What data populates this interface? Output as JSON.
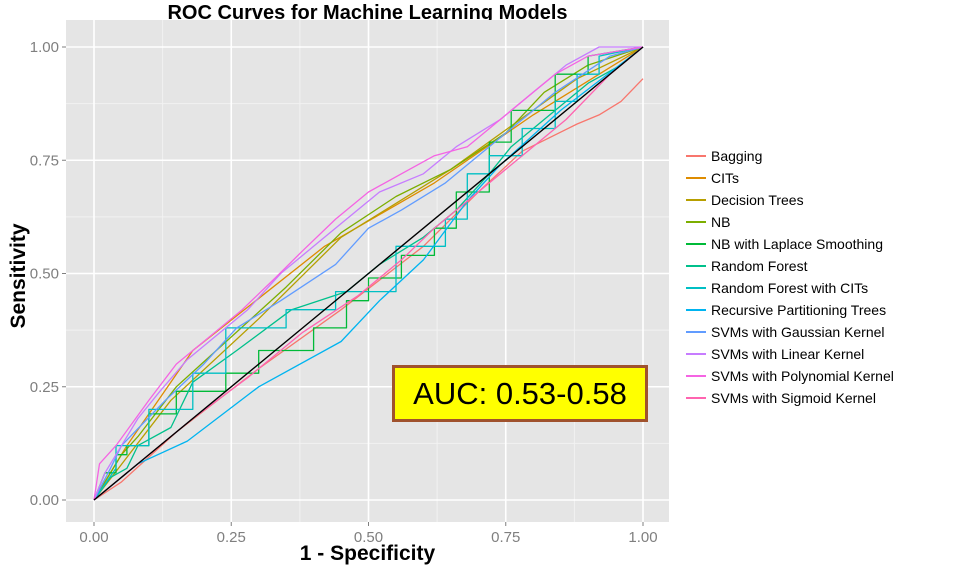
{
  "chart_data": {
    "type": "line",
    "title": "ROC Curves for Machine Learning Models",
    "xlabel": "1 - Specificity",
    "ylabel": "Sensitivity",
    "xlim": [
      0,
      1
    ],
    "ylim": [
      0,
      1
    ],
    "x_ticks": [
      "0.00",
      "0.25",
      "0.50",
      "0.75",
      "1.00"
    ],
    "y_ticks": [
      "0.00",
      "0.25",
      "0.50",
      "0.75",
      "1.00"
    ],
    "grid": true,
    "legend_position": "right",
    "annotation": "AUC: 0.53-0.58",
    "reference_line": {
      "color": "#000000",
      "points": [
        [
          0,
          0
        ],
        [
          1,
          1
        ]
      ]
    },
    "series": [
      {
        "name": "Bagging",
        "color": "#F8766D",
        "points": [
          [
            0,
            0
          ],
          [
            0.05,
            0.04
          ],
          [
            0.15,
            0.15
          ],
          [
            0.3,
            0.29
          ],
          [
            0.45,
            0.42
          ],
          [
            0.6,
            0.56
          ],
          [
            0.7,
            0.68
          ],
          [
            0.78,
            0.77
          ],
          [
            0.88,
            0.83
          ],
          [
            0.92,
            0.85
          ],
          [
            0.96,
            0.88
          ],
          [
            1,
            0.93
          ]
        ]
      },
      {
        "name": "CITs",
        "color": "#DE8C00",
        "points": [
          [
            0,
            0
          ],
          [
            0.06,
            0.12
          ],
          [
            0.18,
            0.33
          ],
          [
            0.42,
            0.56
          ],
          [
            0.62,
            0.7
          ],
          [
            0.8,
            0.85
          ],
          [
            0.92,
            0.94
          ],
          [
            1,
            1
          ]
        ]
      },
      {
        "name": "Decision Trees",
        "color": "#B79F00",
        "points": [
          [
            0,
            0
          ],
          [
            0.14,
            0.22
          ],
          [
            0.3,
            0.4
          ],
          [
            0.45,
            0.58
          ],
          [
            0.65,
            0.73
          ],
          [
            0.88,
            0.93
          ],
          [
            1,
            1
          ]
        ]
      },
      {
        "name": "NB",
        "color": "#7CAE00",
        "points": [
          [
            0,
            0
          ],
          [
            0.05,
            0.1
          ],
          [
            0.08,
            0.14
          ],
          [
            0.15,
            0.25
          ],
          [
            0.25,
            0.36
          ],
          [
            0.35,
            0.47
          ],
          [
            0.45,
            0.59
          ],
          [
            0.55,
            0.67
          ],
          [
            0.65,
            0.73
          ],
          [
            0.75,
            0.81
          ],
          [
            0.82,
            0.9
          ],
          [
            0.9,
            0.96
          ],
          [
            1,
            1
          ]
        ]
      },
      {
        "name": "NB with Laplace Smoothing",
        "color": "#00BA38",
        "points": [
          [
            0,
            0
          ],
          [
            0.02,
            0.06
          ],
          [
            0.04,
            0.06
          ],
          [
            0.04,
            0.1
          ],
          [
            0.06,
            0.1
          ],
          [
            0.06,
            0.12
          ],
          [
            0.1,
            0.12
          ],
          [
            0.1,
            0.19
          ],
          [
            0.15,
            0.19
          ],
          [
            0.15,
            0.24
          ],
          [
            0.24,
            0.24
          ],
          [
            0.24,
            0.28
          ],
          [
            0.3,
            0.28
          ],
          [
            0.3,
            0.33
          ],
          [
            0.4,
            0.33
          ],
          [
            0.4,
            0.38
          ],
          [
            0.46,
            0.38
          ],
          [
            0.46,
            0.44
          ],
          [
            0.5,
            0.44
          ],
          [
            0.5,
            0.49
          ],
          [
            0.56,
            0.49
          ],
          [
            0.56,
            0.54
          ],
          [
            0.62,
            0.54
          ],
          [
            0.62,
            0.6
          ],
          [
            0.66,
            0.6
          ],
          [
            0.66,
            0.68
          ],
          [
            0.72,
            0.68
          ],
          [
            0.72,
            0.79
          ],
          [
            0.76,
            0.79
          ],
          [
            0.76,
            0.86
          ],
          [
            0.84,
            0.86
          ],
          [
            0.84,
            0.94
          ],
          [
            0.9,
            0.94
          ],
          [
            0.9,
            0.98
          ],
          [
            1,
            1
          ]
        ]
      },
      {
        "name": "Random Forest",
        "color": "#00C08B",
        "points": [
          [
            0,
            0
          ],
          [
            0.03,
            0.05
          ],
          [
            0.06,
            0.07
          ],
          [
            0.08,
            0.12
          ],
          [
            0.14,
            0.16
          ],
          [
            0.18,
            0.26
          ],
          [
            0.26,
            0.33
          ],
          [
            0.36,
            0.42
          ],
          [
            0.46,
            0.46
          ],
          [
            0.52,
            0.52
          ],
          [
            0.6,
            0.58
          ],
          [
            0.66,
            0.64
          ],
          [
            0.72,
            0.72
          ],
          [
            0.76,
            0.78
          ],
          [
            0.84,
            0.86
          ],
          [
            0.9,
            0.92
          ],
          [
            0.96,
            0.96
          ],
          [
            1,
            1
          ]
        ]
      },
      {
        "name": "Random Forest with CITs",
        "color": "#00BFC4",
        "points": [
          [
            0,
            0
          ],
          [
            0.04,
            0.07
          ],
          [
            0.04,
            0.12
          ],
          [
            0.1,
            0.12
          ],
          [
            0.1,
            0.2
          ],
          [
            0.18,
            0.2
          ],
          [
            0.18,
            0.28
          ],
          [
            0.24,
            0.28
          ],
          [
            0.24,
            0.38
          ],
          [
            0.35,
            0.38
          ],
          [
            0.35,
            0.42
          ],
          [
            0.44,
            0.42
          ],
          [
            0.44,
            0.46
          ],
          [
            0.55,
            0.46
          ],
          [
            0.55,
            0.56
          ],
          [
            0.64,
            0.56
          ],
          [
            0.64,
            0.62
          ],
          [
            0.68,
            0.62
          ],
          [
            0.68,
            0.72
          ],
          [
            0.72,
            0.72
          ],
          [
            0.72,
            0.76
          ],
          [
            0.78,
            0.76
          ],
          [
            0.78,
            0.82
          ],
          [
            0.84,
            0.82
          ],
          [
            0.84,
            0.88
          ],
          [
            0.88,
            0.88
          ],
          [
            0.88,
            0.94
          ],
          [
            0.92,
            0.94
          ],
          [
            0.92,
            0.98
          ],
          [
            1,
            1
          ]
        ]
      },
      {
        "name": "Recursive Partitioning Trees",
        "color": "#00B4F0",
        "points": [
          [
            0,
            0
          ],
          [
            0.08,
            0.08
          ],
          [
            0.17,
            0.13
          ],
          [
            0.3,
            0.25
          ],
          [
            0.45,
            0.35
          ],
          [
            0.52,
            0.44
          ],
          [
            0.6,
            0.53
          ],
          [
            0.68,
            0.66
          ],
          [
            0.74,
            0.74
          ],
          [
            0.85,
            0.86
          ],
          [
            1,
            1
          ]
        ]
      },
      {
        "name": "SVMs with Gaussian Kernel",
        "color": "#619CFF",
        "points": [
          [
            0,
            0
          ],
          [
            0.03,
            0.07
          ],
          [
            0.05,
            0.12
          ],
          [
            0.09,
            0.17
          ],
          [
            0.13,
            0.22
          ],
          [
            0.2,
            0.3
          ],
          [
            0.26,
            0.38
          ],
          [
            0.34,
            0.44
          ],
          [
            0.44,
            0.52
          ],
          [
            0.5,
            0.6
          ],
          [
            0.56,
            0.64
          ],
          [
            0.64,
            0.7
          ],
          [
            0.74,
            0.8
          ],
          [
            0.84,
            0.9
          ],
          [
            0.94,
            0.98
          ],
          [
            1,
            1
          ]
        ]
      },
      {
        "name": "SVMs with Linear Kernel",
        "color": "#C77CFF",
        "points": [
          [
            0,
            0
          ],
          [
            0.02,
            0.06
          ],
          [
            0.05,
            0.12
          ],
          [
            0.08,
            0.18
          ],
          [
            0.12,
            0.24
          ],
          [
            0.17,
            0.31
          ],
          [
            0.22,
            0.36
          ],
          [
            0.28,
            0.42
          ],
          [
            0.34,
            0.5
          ],
          [
            0.4,
            0.56
          ],
          [
            0.46,
            0.62
          ],
          [
            0.52,
            0.68
          ],
          [
            0.6,
            0.72
          ],
          [
            0.66,
            0.78
          ],
          [
            0.74,
            0.84
          ],
          [
            0.8,
            0.9
          ],
          [
            0.86,
            0.96
          ],
          [
            0.92,
            1
          ],
          [
            1,
            1
          ]
        ]
      },
      {
        "name": "SVMs with Polynomial Kernel",
        "color": "#F564E3",
        "points": [
          [
            0,
            0
          ],
          [
            0.01,
            0.08
          ],
          [
            0.04,
            0.12
          ],
          [
            0.07,
            0.17
          ],
          [
            0.1,
            0.22
          ],
          [
            0.15,
            0.3
          ],
          [
            0.2,
            0.35
          ],
          [
            0.27,
            0.42
          ],
          [
            0.33,
            0.49
          ],
          [
            0.38,
            0.55
          ],
          [
            0.44,
            0.62
          ],
          [
            0.5,
            0.68
          ],
          [
            0.56,
            0.72
          ],
          [
            0.62,
            0.76
          ],
          [
            0.68,
            0.78
          ],
          [
            0.74,
            0.84
          ],
          [
            0.8,
            0.9
          ],
          [
            0.84,
            0.94
          ],
          [
            0.9,
            0.98
          ],
          [
            1,
            1
          ]
        ]
      },
      {
        "name": "SVMs with Sigmoid Kernel",
        "color": "#FF64B0",
        "points": [
          [
            0,
            0
          ],
          [
            0.02,
            0.02
          ],
          [
            0.05,
            0.05
          ],
          [
            0.1,
            0.1
          ],
          [
            0.18,
            0.18
          ],
          [
            0.28,
            0.27
          ],
          [
            0.38,
            0.37
          ],
          [
            0.48,
            0.45
          ],
          [
            0.56,
            0.53
          ],
          [
            0.62,
            0.6
          ],
          [
            0.7,
            0.68
          ],
          [
            0.78,
            0.76
          ],
          [
            0.86,
            0.84
          ],
          [
            0.94,
            0.94
          ],
          [
            1,
            1
          ]
        ]
      }
    ]
  }
}
